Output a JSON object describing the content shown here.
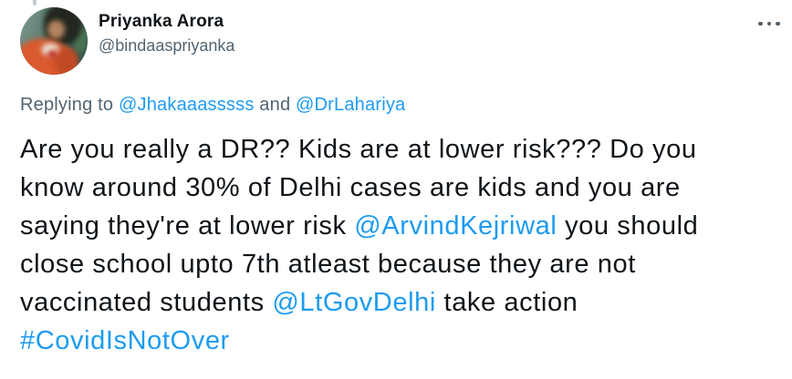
{
  "colors": {
    "background": "#ffffff",
    "text_primary": "#0f1419",
    "text_secondary": "#536471",
    "link_blue": "#1d9bf0"
  },
  "header": {
    "display_name": "Priyanka Arora",
    "handle": "@bindaaspriyanka"
  },
  "reply_line": {
    "prefix": "Replying to",
    "mentions": [
      "@Jhakaaasssss",
      "@DrLahariya"
    ],
    "conjunction": "and"
  },
  "tweet": {
    "segments": [
      {
        "type": "text",
        "text": "Are you really a DR?? Kids are at lower risk??? Do you\nknow around 30% of Delhi cases are kids and you are\nsaying they're at lower risk "
      },
      {
        "type": "mention",
        "text": "@ArvindKejriwal"
      },
      {
        "type": "text",
        "text": " you should\nclose school upto 7th atleast because they are not\nvaccinated students "
      },
      {
        "type": "mention",
        "text": "@LtGovDelhi"
      },
      {
        "type": "text",
        "text": " take action\n"
      },
      {
        "type": "hashtag",
        "text": "#CovidIsNotOver"
      }
    ]
  }
}
